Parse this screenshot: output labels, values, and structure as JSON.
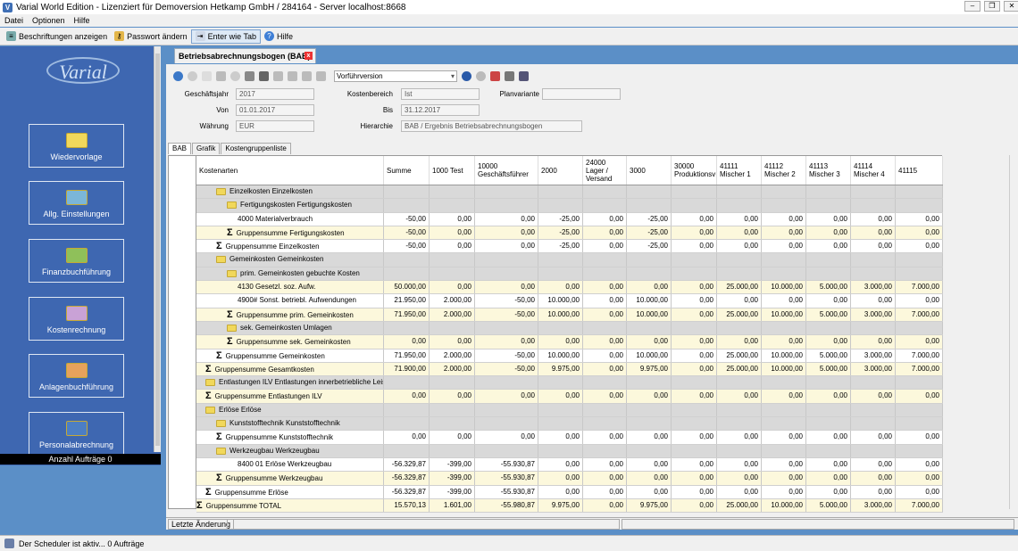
{
  "window": {
    "title": "Varial World Edition - Lizenziert für Demoversion Hetkamp GmbH / 284164 - Server localhost:8668"
  },
  "menu": [
    "Datei",
    "Optionen",
    "Hilfe"
  ],
  "toolbar": {
    "labels": "Beschriftungen anzeigen",
    "password": "Passwort ändern",
    "enter": "Enter wie Tab",
    "help": "Hilfe"
  },
  "nav": {
    "logo": "Varial",
    "items": [
      "Wiedervorlage",
      "Allg. Einstellungen",
      "Finanzbuchführung",
      "Kostenrechnung",
      "Anlagenbuchführung",
      "Personalabrechnung"
    ],
    "anzahl": "Anzahl Aufträge 0"
  },
  "doc": {
    "tab": "Betriebsabrechnungsbogen (BAB)",
    "version": "Vorführversion"
  },
  "form": {
    "gj_l": "Geschäftsjahr",
    "gj": "2017",
    "von_l": "Von",
    "von": "01.01.2017",
    "wa_l": "Währung",
    "wa": "EUR",
    "kb_l": "Kostenbereich",
    "kb": "Ist",
    "bis_l": "Bis",
    "bis": "31.12.2017",
    "hi_l": "Hierarchie",
    "hi": "BAB / Ergebnis Betriebsabrechnungsbogen",
    "pv_l": "Planvariante",
    "pv": ""
  },
  "tabs": [
    "BAB",
    "Grafik",
    "Kostengruppenliste"
  ],
  "table": {
    "columns": [
      "Kostenarten",
      "Summe",
      "1000 Test",
      "10000 Geschäftsführer",
      "2000",
      "24000 Lager / Versand",
      "3000",
      "30000 Produktionsv",
      "41111 Mischer 1",
      "41112 Mischer 2",
      "41113 Mischer 3",
      "41114 Mischer 4",
      "41115"
    ],
    "rows": [
      {
        "t": "g",
        "i": 1,
        "k": "f",
        "label": "Einzelkosten Einzelkosten",
        "v": []
      },
      {
        "t": "g",
        "i": 2,
        "k": "f",
        "label": "Fertigungskosten Fertigungskosten",
        "v": []
      },
      {
        "t": "w",
        "i": 3,
        "k": "",
        "label": "4000 Materialverbrauch",
        "v": [
          "-50,00",
          "0,00",
          "0,00",
          "-25,00",
          "0,00",
          "-25,00",
          "0,00",
          "0,00",
          "0,00",
          "0,00",
          "0,00",
          "0,00"
        ]
      },
      {
        "t": "y",
        "i": 2,
        "k": "s",
        "label": "Gruppensumme Fertigungskosten",
        "v": [
          "-50,00",
          "0,00",
          "0,00",
          "-25,00",
          "0,00",
          "-25,00",
          "0,00",
          "0,00",
          "0,00",
          "0,00",
          "0,00",
          "0,00"
        ]
      },
      {
        "t": "w",
        "i": 1,
        "k": "s",
        "label": "Gruppensumme Einzelkosten",
        "v": [
          "-50,00",
          "0,00",
          "0,00",
          "-25,00",
          "0,00",
          "-25,00",
          "0,00",
          "0,00",
          "0,00",
          "0,00",
          "0,00",
          "0,00"
        ]
      },
      {
        "t": "g",
        "i": 1,
        "k": "f",
        "label": "Gemeinkosten Gemeinkosten",
        "v": []
      },
      {
        "t": "g",
        "i": 2,
        "k": "f",
        "label": "prim. Gemeinkosten gebuchte Kosten",
        "v": []
      },
      {
        "t": "y",
        "i": 3,
        "k": "",
        "label": "4130 Gesetzl. soz. Aufw.",
        "v": [
          "50.000,00",
          "0,00",
          "0,00",
          "0,00",
          "0,00",
          "0,00",
          "0,00",
          "25.000,00",
          "10.000,00",
          "5.000,00",
          "3.000,00",
          "7.000,00"
        ]
      },
      {
        "t": "w",
        "i": 3,
        "k": "",
        "label": "4900# Sonst. betriebl. Aufwendungen",
        "v": [
          "21.950,00",
          "2.000,00",
          "-50,00",
          "10.000,00",
          "0,00",
          "10.000,00",
          "0,00",
          "0,00",
          "0,00",
          "0,00",
          "0,00",
          "0,00"
        ]
      },
      {
        "t": "y",
        "i": 2,
        "k": "s",
        "label": "Gruppensumme prim. Gemeinkosten",
        "v": [
          "71.950,00",
          "2.000,00",
          "-50,00",
          "10.000,00",
          "0,00",
          "10.000,00",
          "0,00",
          "25.000,00",
          "10.000,00",
          "5.000,00",
          "3.000,00",
          "7.000,00"
        ]
      },
      {
        "t": "g",
        "i": 2,
        "k": "f",
        "label": "sek. Gemeinkosten Umlagen",
        "v": []
      },
      {
        "t": "y",
        "i": 2,
        "k": "s",
        "label": "Gruppensumme sek. Gemeinkosten",
        "v": [
          "0,00",
          "0,00",
          "0,00",
          "0,00",
          "0,00",
          "0,00",
          "0,00",
          "0,00",
          "0,00",
          "0,00",
          "0,00",
          "0,00"
        ]
      },
      {
        "t": "w",
        "i": 1,
        "k": "s",
        "label": "Gruppensumme Gemeinkosten",
        "v": [
          "71.950,00",
          "2.000,00",
          "-50,00",
          "10.000,00",
          "0,00",
          "10.000,00",
          "0,00",
          "25.000,00",
          "10.000,00",
          "5.000,00",
          "3.000,00",
          "7.000,00"
        ]
      },
      {
        "t": "y",
        "i": 0,
        "k": "s",
        "label": "Gruppensumme Gesamtkosten",
        "v": [
          "71.900,00",
          "2.000,00",
          "-50,00",
          "9.975,00",
          "0,00",
          "9.975,00",
          "0,00",
          "25.000,00",
          "10.000,00",
          "5.000,00",
          "3.000,00",
          "7.000,00"
        ]
      },
      {
        "t": "g",
        "i": 0,
        "k": "f",
        "label": "Entlastungen ILV Entlastungen innerbetriebliche Leistungsverrechnung",
        "v": []
      },
      {
        "t": "y",
        "i": 0,
        "k": "s",
        "label": "Gruppensumme Entlastungen ILV",
        "v": [
          "0,00",
          "0,00",
          "0,00",
          "0,00",
          "0,00",
          "0,00",
          "0,00",
          "0,00",
          "0,00",
          "0,00",
          "0,00",
          "0,00"
        ]
      },
      {
        "t": "g",
        "i": 0,
        "k": "f",
        "label": "Erlöse Erlöse",
        "v": []
      },
      {
        "t": "g",
        "i": 1,
        "k": "f",
        "label": "Kunststofftechnik Kunststofftechnik",
        "v": []
      },
      {
        "t": "w",
        "i": 1,
        "k": "s",
        "label": "Gruppensumme Kunststofftechnik",
        "v": [
          "0,00",
          "0,00",
          "0,00",
          "0,00",
          "0,00",
          "0,00",
          "0,00",
          "0,00",
          "0,00",
          "0,00",
          "0,00",
          "0,00"
        ]
      },
      {
        "t": "g",
        "i": 1,
        "k": "f",
        "label": "Werkzeugbau Werkzeugbau",
        "v": []
      },
      {
        "t": "w",
        "i": 3,
        "k": "",
        "label": "8400 01 Erlöse Werkzeugbau",
        "v": [
          "-56.329,87",
          "-399,00",
          "-55.930,87",
          "0,00",
          "0,00",
          "0,00",
          "0,00",
          "0,00",
          "0,00",
          "0,00",
          "0,00",
          "0,00"
        ]
      },
      {
        "t": "y",
        "i": 1,
        "k": "s",
        "label": "Gruppensumme Werkzeugbau",
        "v": [
          "-56.329,87",
          "-399,00",
          "-55.930,87",
          "0,00",
          "0,00",
          "0,00",
          "0,00",
          "0,00",
          "0,00",
          "0,00",
          "0,00",
          "0,00"
        ]
      },
      {
        "t": "w",
        "i": 0,
        "k": "s",
        "label": "Gruppensumme Erlöse",
        "v": [
          "-56.329,87",
          "-399,00",
          "-55.930,87",
          "0,00",
          "0,00",
          "0,00",
          "0,00",
          "0,00",
          "0,00",
          "0,00",
          "0,00",
          "0,00"
        ]
      },
      {
        "t": "y",
        "i": -1,
        "k": "s",
        "label": "Gruppensumme TOTAL",
        "v": [
          "15.570,13",
          "1.601,00",
          "-55.980,87",
          "9.975,00",
          "0,00",
          "9.975,00",
          "0,00",
          "25.000,00",
          "10.000,00",
          "5.000,00",
          "3.000,00",
          "7.000,00"
        ]
      }
    ]
  },
  "footer": {
    "last_change": "Letzte Änderung"
  },
  "status": "Der Scheduler ist aktiv... 0 Aufträge"
}
